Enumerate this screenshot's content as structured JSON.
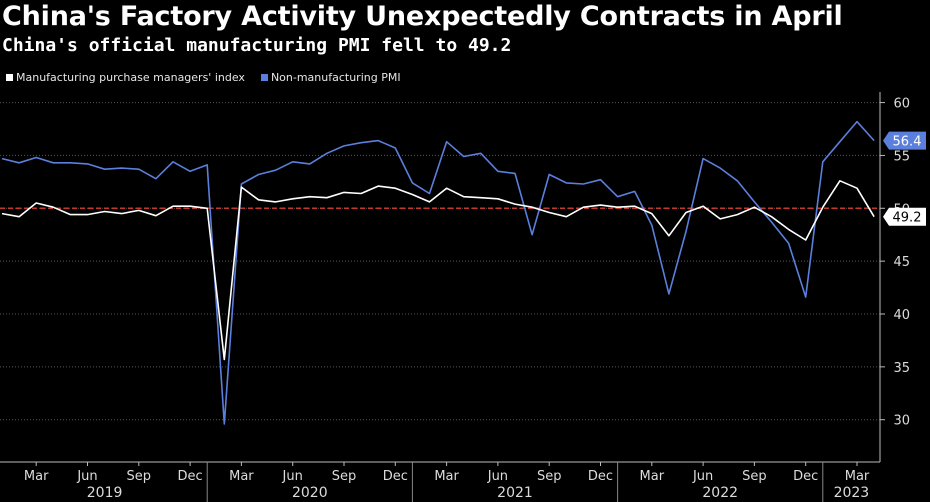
{
  "title": "China's Factory Activity Unexpectedly Contracts in April",
  "subtitle": "China's official manufacturing PMI fell to 49.2",
  "colors": {
    "background": "#000000",
    "manufacturing": "#ffffff",
    "non_manufacturing": "#5b7fdc",
    "reference_line": "#c0392b",
    "grid": "#555555"
  },
  "chart_data": {
    "type": "line",
    "x_start": "2019-01",
    "x_end": "2023-04",
    "x_tick_labels": [
      "Mar",
      "Jun",
      "Sep",
      "Dec",
      "Mar",
      "Jun",
      "Sep",
      "Dec",
      "Mar",
      "Jun",
      "Sep",
      "Dec",
      "Mar",
      "Jun",
      "Sep",
      "Dec",
      "Mar"
    ],
    "x_tick_months": [
      "2019-03",
      "2019-06",
      "2019-09",
      "2019-12",
      "2020-03",
      "2020-06",
      "2020-09",
      "2020-12",
      "2021-03",
      "2021-06",
      "2021-09",
      "2021-12",
      "2022-03",
      "2022-06",
      "2022-09",
      "2022-12",
      "2023-03"
    ],
    "years": [
      "2019",
      "2020",
      "2021",
      "2022",
      "2023"
    ],
    "ylim": [
      26,
      61
    ],
    "y_ticks": [
      30,
      35,
      40,
      45,
      50,
      55,
      60
    ],
    "reference_line": 50,
    "grid": true,
    "legend_position": "top-left",
    "series": [
      {
        "name": "Manufacturing purchase managers' index",
        "color": "#ffffff",
        "last_value_label": "49.2",
        "values": [
          49.5,
          49.2,
          50.5,
          50.1,
          49.4,
          49.4,
          49.7,
          49.5,
          49.8,
          49.3,
          50.2,
          50.2,
          50.0,
          35.7,
          52.0,
          50.8,
          50.6,
          50.9,
          51.1,
          51.0,
          51.5,
          51.4,
          52.1,
          51.9,
          51.3,
          50.6,
          51.9,
          51.1,
          51.0,
          50.9,
          50.4,
          50.1,
          49.6,
          49.2,
          50.1,
          50.3,
          50.1,
          50.2,
          49.5,
          47.4,
          49.6,
          50.2,
          49.0,
          49.4,
          50.1,
          49.2,
          48.0,
          47.0,
          50.1,
          52.6,
          51.9,
          49.2
        ]
      },
      {
        "name": "Non-manufacturing PMI",
        "color": "#5b7fdc",
        "last_value_label": "56.4",
        "values": [
          54.7,
          54.3,
          54.8,
          54.3,
          54.3,
          54.2,
          53.7,
          53.8,
          53.7,
          52.8,
          54.4,
          53.5,
          54.1,
          29.6,
          52.3,
          53.2,
          53.6,
          54.4,
          54.2,
          55.2,
          55.9,
          56.2,
          56.4,
          55.7,
          52.4,
          51.4,
          56.3,
          54.9,
          55.2,
          53.5,
          53.3,
          47.5,
          53.2,
          52.4,
          52.3,
          52.7,
          51.1,
          51.6,
          48.4,
          41.9,
          47.8,
          54.7,
          53.8,
          52.6,
          50.6,
          48.7,
          46.7,
          41.6,
          54.4,
          56.3,
          58.2,
          56.4
        ]
      }
    ]
  }
}
